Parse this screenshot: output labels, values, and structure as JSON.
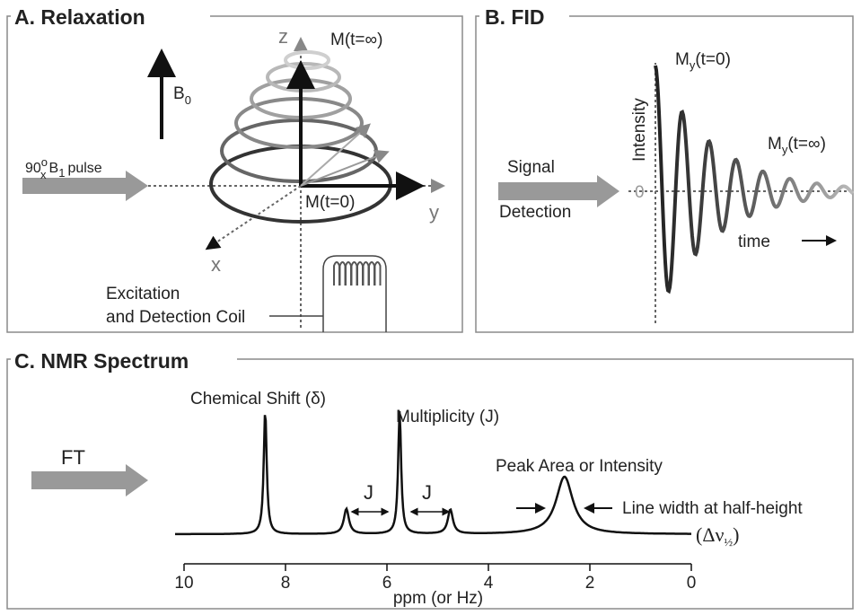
{
  "panel_a": {
    "title": "A. Relaxation",
    "z_label": "z",
    "m_final": "M(t=∞)",
    "b0": {
      "main": "B",
      "sub": "0"
    },
    "pulse": {
      "angle": "90",
      "deg": "o",
      "axis": "x",
      "field": "B",
      "field_sub": "1",
      "rest": "pulse"
    },
    "y_label": "y",
    "x_label": "x",
    "m_initial": "M(t=0)",
    "coil_line1": "Excitation",
    "coil_line2": "and Detection Coil"
  },
  "panel_b": {
    "title": "B. FID",
    "my_initial": {
      "main": "M",
      "sub": "y",
      "rest": "(t=0)"
    },
    "y_axis": "Intensity",
    "my_final": {
      "main": "M",
      "sub": "y",
      "rest": "(t=∞)"
    },
    "zero": "0",
    "arrow_line1": "Signal",
    "arrow_line2": "Detection",
    "time": "time"
  },
  "panel_c": {
    "title": "C. NMR Spectrum",
    "arrow_label": "FT",
    "shift_label": "Chemical Shift (δ)",
    "multiplicity_label": "Multiplicity (J)",
    "j_left": "J",
    "j_right": "J",
    "area_label": "Peak Area or Intensity",
    "width_label": "Line width at half-height",
    "width_symbol": {
      "main": "(Δν",
      "sub": "½",
      "rest": ")"
    },
    "axis": {
      "ticks": [
        10,
        8,
        6,
        4,
        2,
        0
      ],
      "label": "ppm (or Hz)"
    }
  }
}
